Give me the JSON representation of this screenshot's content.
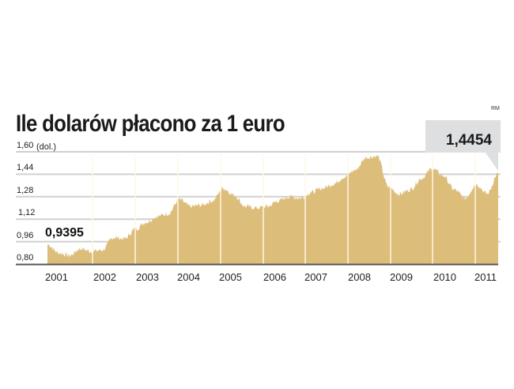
{
  "title": "Ile dolarów płacono za 1 euro",
  "credit": "RM",
  "y_unit": "(dol.)",
  "start_annotation": "0,9395",
  "end_annotation": "1,4454",
  "y_ticks": [
    "1,60",
    "1,44",
    "1,28",
    "1,12",
    "0,96",
    "0,80"
  ],
  "x_ticks": [
    "2001",
    "2002",
    "2003",
    "2004",
    "2005",
    "2006",
    "2007",
    "2008",
    "2009",
    "2010",
    "2011"
  ],
  "colors": {
    "fill": "#dcbd7a",
    "grid": "#d0d0d0",
    "separator": "#fff8e6",
    "callout": "#dedfe0",
    "baseline": "#555555"
  },
  "chart_data": {
    "type": "area",
    "title": "Ile dolarów płacono za 1 euro",
    "xlabel": "",
    "ylabel": "(dol.)",
    "ylim": [
      0.8,
      1.6
    ],
    "yticks": [
      0.8,
      0.96,
      1.12,
      1.28,
      1.44,
      1.6
    ],
    "grid": true,
    "categories": [
      "2001",
      "2002",
      "2003",
      "2004",
      "2005",
      "2006",
      "2007",
      "2008",
      "2009",
      "2010",
      "2011"
    ],
    "x": [
      "2001-01",
      "2001-04",
      "2001-07",
      "2001-10",
      "2002-01",
      "2002-04",
      "2002-07",
      "2002-10",
      "2003-01",
      "2003-04",
      "2003-07",
      "2003-10",
      "2004-01",
      "2004-04",
      "2004-07",
      "2004-10",
      "2005-01",
      "2005-04",
      "2005-07",
      "2005-10",
      "2006-01",
      "2006-04",
      "2006-07",
      "2006-10",
      "2007-01",
      "2007-04",
      "2007-07",
      "2007-10",
      "2008-01",
      "2008-04",
      "2008-07",
      "2008-10",
      "2009-01",
      "2009-04",
      "2009-07",
      "2009-10",
      "2010-01",
      "2010-04",
      "2010-07",
      "2010-10",
      "2011-01",
      "2011-04"
    ],
    "values": [
      0.94,
      0.88,
      0.86,
      0.91,
      0.89,
      0.9,
      0.99,
      0.98,
      1.05,
      1.1,
      1.14,
      1.16,
      1.26,
      1.21,
      1.22,
      1.25,
      1.34,
      1.29,
      1.21,
      1.2,
      1.21,
      1.25,
      1.28,
      1.27,
      1.31,
      1.34,
      1.37,
      1.42,
      1.47,
      1.56,
      1.57,
      1.35,
      1.3,
      1.33,
      1.41,
      1.48,
      1.43,
      1.33,
      1.27,
      1.37,
      1.3,
      1.4454
    ],
    "annotations": [
      {
        "x": "2001-01",
        "label": "0,9395"
      },
      {
        "x": "2011-04",
        "label": "1,4454"
      }
    ],
    "credit": "RM"
  }
}
